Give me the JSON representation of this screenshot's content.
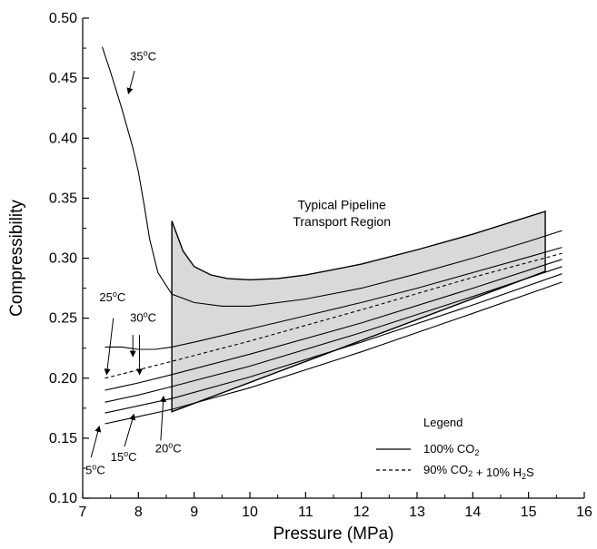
{
  "chart_data": {
    "type": "line",
    "xlabel": "Pressure (MPa)",
    "ylabel": "Compressibility",
    "xlim": [
      7,
      16
    ],
    "ylim": [
      0.1,
      0.5
    ],
    "x_ticks": [
      7,
      8,
      9,
      10,
      11,
      12,
      13,
      14,
      15,
      16
    ],
    "y_ticks": [
      0.1,
      0.15,
      0.2,
      0.25,
      0.3,
      0.35,
      0.4,
      0.45,
      0.5
    ],
    "grid": false,
    "legend": {
      "title": "Legend",
      "placement": "bottom-right",
      "entries": [
        {
          "label": "100% CO2",
          "style": "solid"
        },
        {
          "label": "90% CO2 + 10% H2S",
          "style": "dashed"
        }
      ]
    },
    "region": {
      "label_line1": "Typical Pipeline",
      "label_line2": "Transport Region",
      "fill": "#d9d9d9",
      "x_range": [
        8.6,
        15.3
      ],
      "upper": [
        [
          8.6,
          0.331
        ],
        [
          8.8,
          0.306
        ],
        [
          9.0,
          0.293
        ],
        [
          9.3,
          0.286
        ],
        [
          9.6,
          0.283
        ],
        [
          10.0,
          0.282
        ],
        [
          10.5,
          0.283
        ],
        [
          11.0,
          0.286
        ],
        [
          12.0,
          0.295
        ],
        [
          13.0,
          0.307
        ],
        [
          14.0,
          0.32
        ],
        [
          15.3,
          0.339
        ]
      ],
      "lower": [
        [
          8.6,
          0.172
        ],
        [
          15.3,
          0.289
        ]
      ]
    },
    "series": [
      {
        "name": "35°C",
        "style": "solid",
        "points": [
          [
            7.35,
            0.476
          ],
          [
            7.5,
            0.455
          ],
          [
            7.7,
            0.425
          ],
          [
            7.9,
            0.392
          ],
          [
            8.0,
            0.372
          ],
          [
            8.1,
            0.345
          ],
          [
            8.2,
            0.316
          ],
          [
            8.35,
            0.288
          ],
          [
            8.6,
            0.27
          ],
          [
            9.0,
            0.263
          ],
          [
            9.5,
            0.26
          ],
          [
            10.0,
            0.26
          ],
          [
            11.0,
            0.266
          ],
          [
            12.0,
            0.275
          ],
          [
            13.0,
            0.287
          ],
          [
            14.0,
            0.3
          ],
          [
            15.0,
            0.314
          ],
          [
            15.6,
            0.323
          ]
        ]
      },
      {
        "name": "30°C",
        "style": "solid",
        "points": [
          [
            7.4,
            0.226
          ],
          [
            7.7,
            0.226
          ],
          [
            8.0,
            0.224
          ],
          [
            8.3,
            0.224
          ],
          [
            8.6,
            0.226
          ],
          [
            9.0,
            0.23
          ],
          [
            10.0,
            0.241
          ],
          [
            11.0,
            0.252
          ],
          [
            12.0,
            0.263
          ],
          [
            13.0,
            0.275
          ],
          [
            14.0,
            0.288
          ],
          [
            15.0,
            0.301
          ],
          [
            15.6,
            0.309
          ]
        ]
      },
      {
        "name": "90% CO2 + 10% H2S",
        "style": "dashed",
        "points": [
          [
            7.4,
            0.2
          ],
          [
            8.0,
            0.207
          ],
          [
            8.6,
            0.214
          ],
          [
            10.0,
            0.231
          ],
          [
            12.0,
            0.257
          ],
          [
            14.0,
            0.284
          ],
          [
            15.6,
            0.304
          ]
        ]
      },
      {
        "name": "25°C",
        "style": "solid",
        "points": [
          [
            7.4,
            0.19
          ],
          [
            8.0,
            0.196
          ],
          [
            8.6,
            0.203
          ],
          [
            10.0,
            0.22
          ],
          [
            12.0,
            0.246
          ],
          [
            14.0,
            0.275
          ],
          [
            15.6,
            0.299
          ]
        ]
      },
      {
        "name": "20°C",
        "style": "solid",
        "points": [
          [
            7.4,
            0.18
          ],
          [
            8.0,
            0.186
          ],
          [
            8.6,
            0.193
          ],
          [
            10.0,
            0.21
          ],
          [
            12.0,
            0.238
          ],
          [
            14.0,
            0.268
          ],
          [
            15.6,
            0.293
          ]
        ]
      },
      {
        "name": "15°C",
        "style": "solid",
        "points": [
          [
            7.4,
            0.171
          ],
          [
            8.0,
            0.177
          ],
          [
            8.6,
            0.183
          ],
          [
            10.0,
            0.201
          ],
          [
            12.0,
            0.23
          ],
          [
            14.0,
            0.261
          ],
          [
            15.6,
            0.287
          ]
        ]
      },
      {
        "name": "5°C",
        "style": "solid",
        "points": [
          [
            7.4,
            0.162
          ],
          [
            8.0,
            0.168
          ],
          [
            8.6,
            0.174
          ],
          [
            10.0,
            0.192
          ],
          [
            12.0,
            0.222
          ],
          [
            14.0,
            0.254
          ],
          [
            15.6,
            0.28
          ]
        ]
      }
    ],
    "annotations": [
      {
        "label": "35",
        "unit": "C",
        "text_at": [
          7.85,
          0.465
        ],
        "arrow_from": [
          7.93,
          0.456
        ],
        "arrow_to": [
          7.82,
          0.437
        ]
      },
      {
        "label": "25",
        "unit": "C",
        "text_at": [
          7.3,
          0.264
        ],
        "arrow_from": [
          7.55,
          0.25
        ],
        "arrow_to": [
          7.43,
          0.203
        ]
      },
      {
        "label": "30",
        "unit": "C",
        "text_at": [
          7.85,
          0.247
        ],
        "arrow_from": [
          8.02,
          0.236
        ],
        "arrow_to": [
          8.02,
          0.203
        ]
      },
      {
        "label": "15",
        "unit": "C",
        "text_at": [
          7.5,
          0.131
        ],
        "arrow_from": [
          7.75,
          0.143
        ],
        "arrow_to": [
          7.92,
          0.17
        ]
      },
      {
        "label": "20",
        "unit": "C",
        "text_at": [
          8.3,
          0.138
        ],
        "arrow_from": [
          8.4,
          0.148
        ],
        "arrow_to": [
          8.45,
          0.185
        ]
      },
      {
        "label": "5",
        "unit": "C",
        "text_at": [
          7.05,
          0.12
        ],
        "arrow_from": [
          7.15,
          0.134
        ],
        "arrow_to": [
          7.3,
          0.16
        ]
      }
    ],
    "marks": {
      "arrow_30c_second": {
        "from": [
          7.9,
          0.236
        ],
        "to": [
          7.9,
          0.218
        ]
      }
    }
  }
}
